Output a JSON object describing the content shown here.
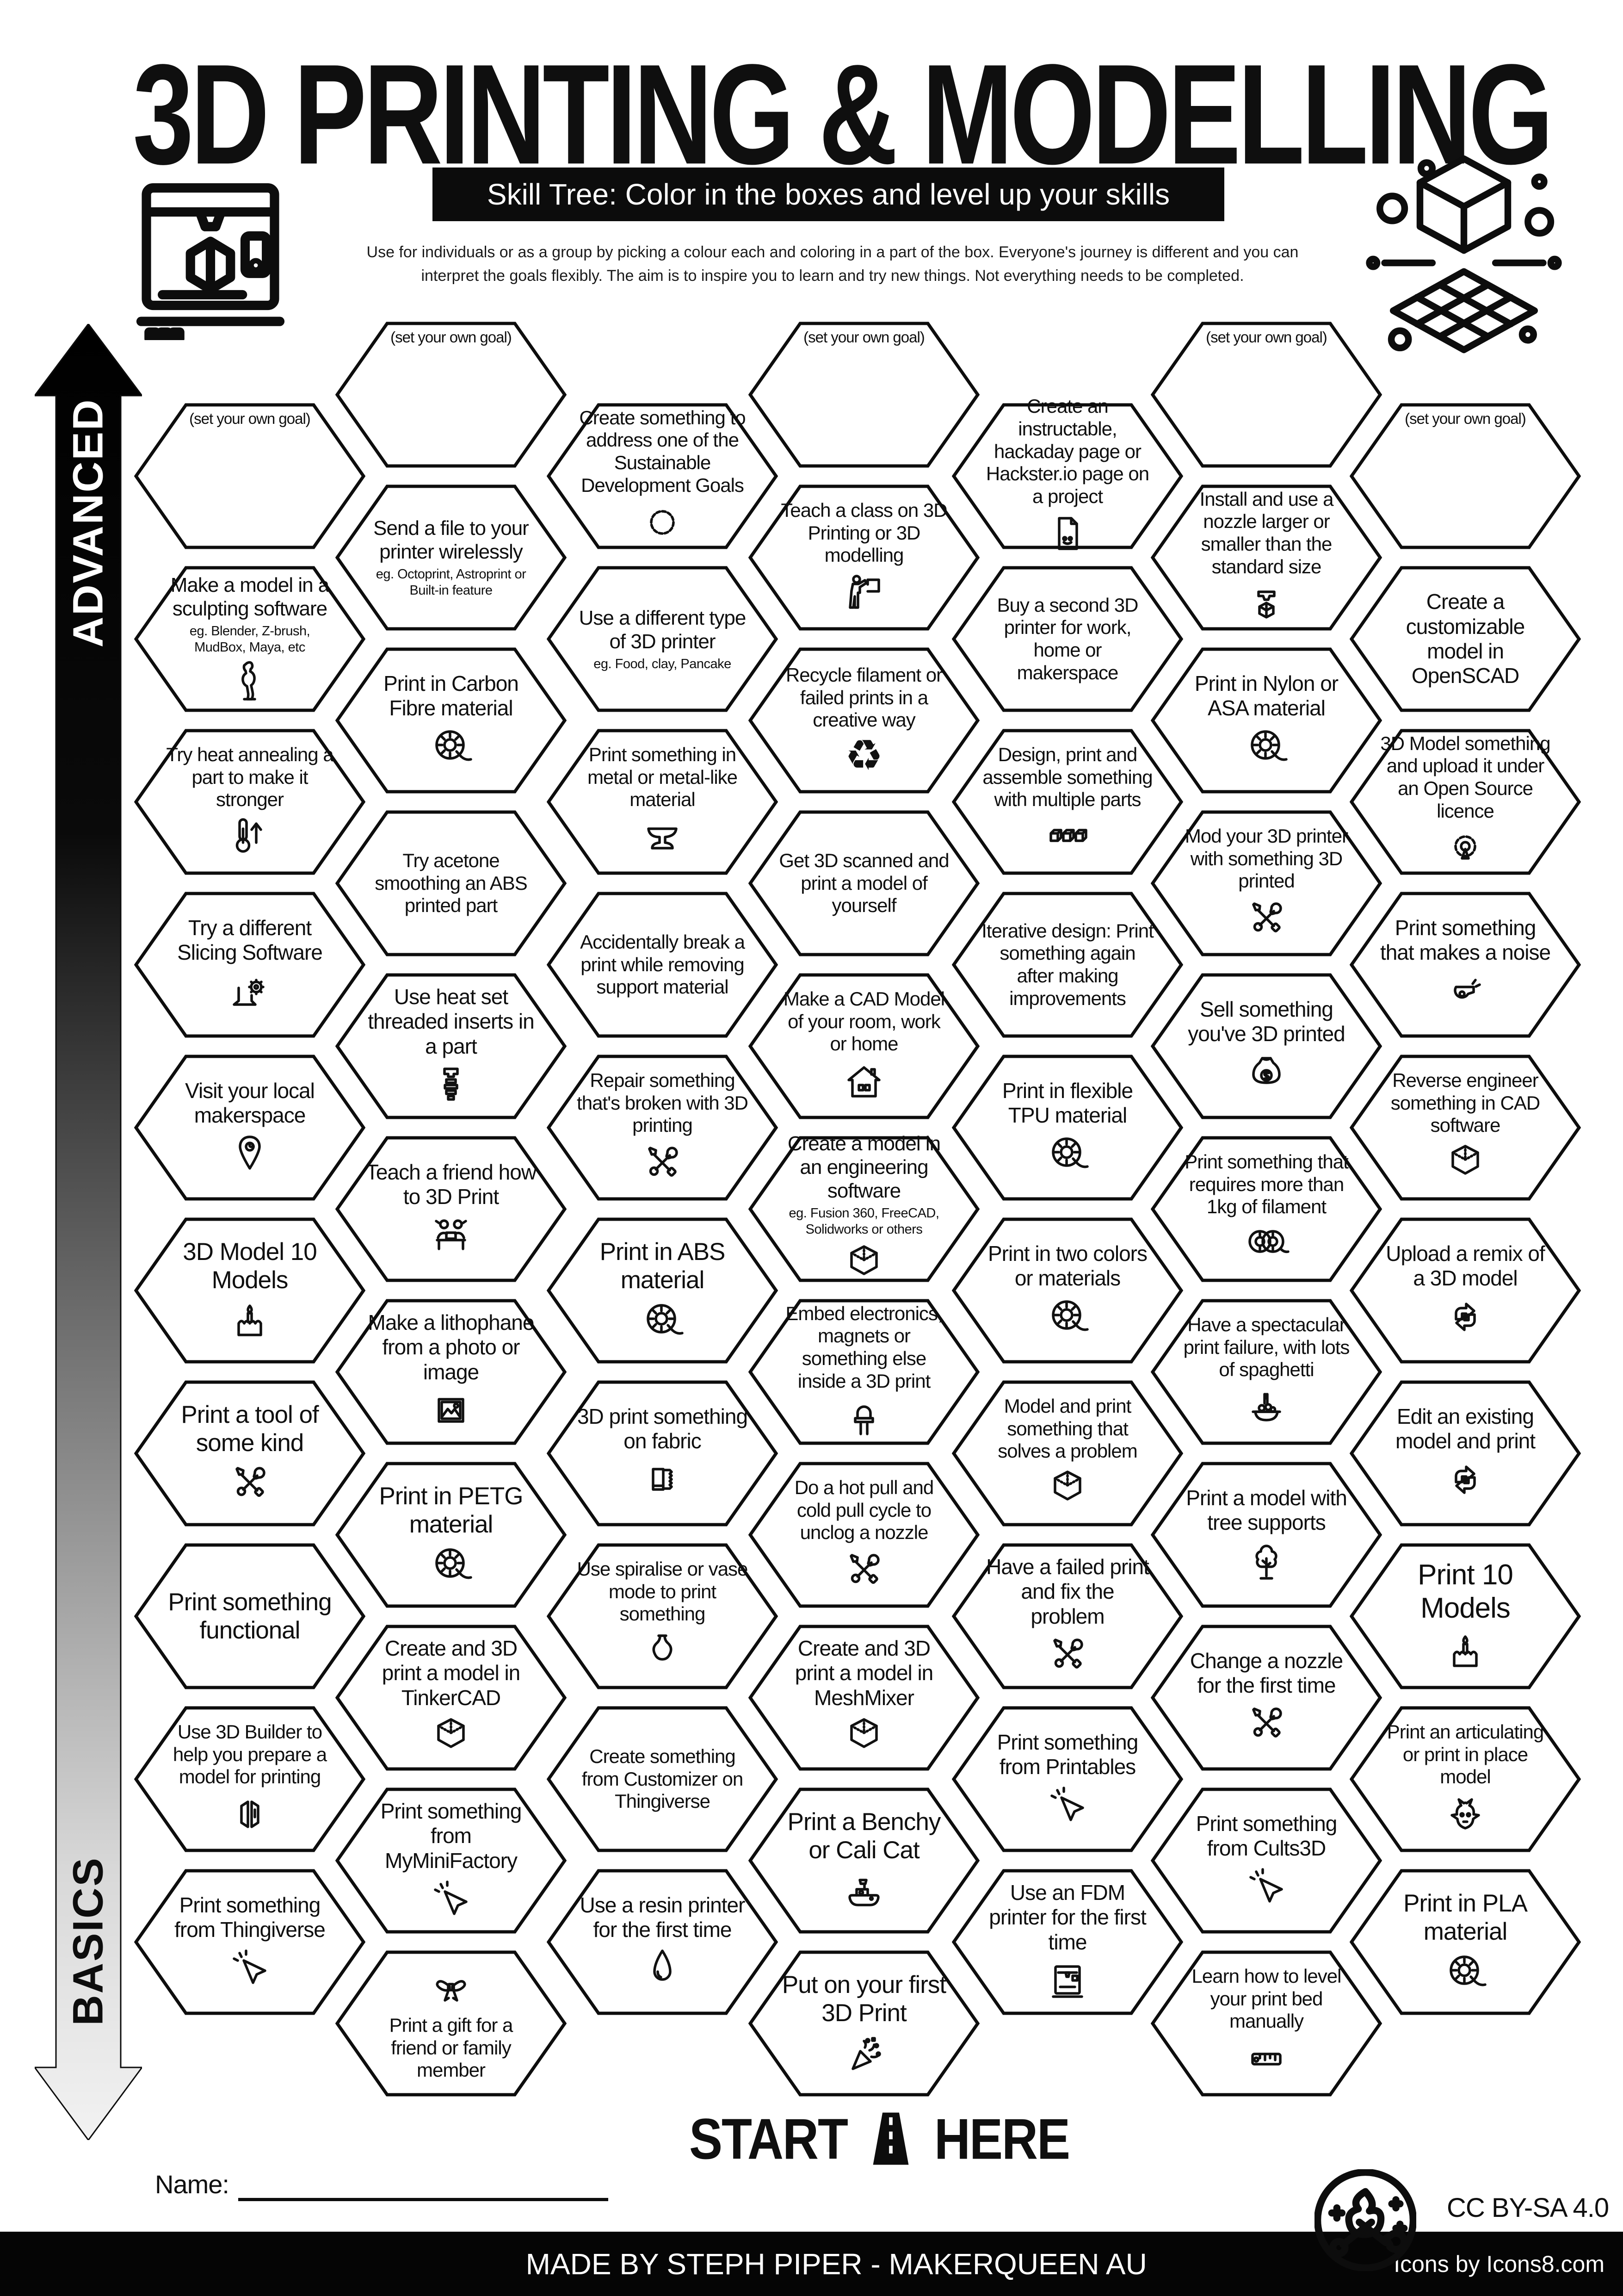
{
  "title": "3D PRINTING & MODELLING",
  "subtitle": "Skill Tree:  Color in the boxes and level up your skills",
  "description": "Use for individuals or as a group by picking a colour each and coloring in a part of the box.  Everyone's journey is different and you can interpret the goals flexibly.  The aim is to inspire you to learn and try new things. Not everything needs to be completed.",
  "axis": {
    "advanced_label": "ADVANCED",
    "basics_label": "BASICS"
  },
  "start_marker": {
    "start": "START",
    "here": "HERE"
  },
  "name_field": {
    "label": "Name:",
    "value": ""
  },
  "footer": {
    "made_by": "MADE BY STEPH PIPER  -  MAKERQUEEN AU",
    "license": "CC BY-SA 4.0",
    "icons_credit": "Icons by Icons8.com"
  },
  "colors": {
    "ink": "#0d0d0d",
    "paper": "#ffffff"
  },
  "columns": [
    {
      "name": "column-1",
      "cells": [
        {
          "goal": true,
          "label": "(set your own goal)"
        },
        {
          "label": "Make a model in a sculpting software",
          "sub": "eg. Blender, Z-brush, MudBox, Maya, etc",
          "icon": "statue"
        },
        {
          "label": "Try heat annealing a part to make it stronger",
          "icon": "thermometer-up"
        },
        {
          "label": "Try a different Slicing Software",
          "icon": "laptop-gear"
        },
        {
          "label": "Visit your local makerspace",
          "icon": "map-pin"
        },
        {
          "label": "3D Model 10 Models",
          "icon": "birthday-cake"
        },
        {
          "label": "Print a tool of some kind",
          "icon": "crossed-tools"
        },
        {
          "label": "Print something functional"
        },
        {
          "label": "Use 3D Builder to help you prepare a model for printing",
          "icon": "3d-builder"
        },
        {
          "label": "Print something from Thingiverse",
          "icon": "click-cursor"
        }
      ]
    },
    {
      "name": "column-2",
      "cells": [
        {
          "goal": true,
          "label": "(set your own goal)"
        },
        {
          "label": "Send a file to your printer wirelessly",
          "sub": "eg. Octoprint, Astroprint or Built-in feature"
        },
        {
          "label": "Print in Carbon Fibre material",
          "icon": "filament-spool"
        },
        {
          "label": "Try acetone smoothing an ABS printed part"
        },
        {
          "label": "Use heat set threaded inserts in a part",
          "icon": "threaded-insert"
        },
        {
          "label": "Teach a friend how to 3D Print",
          "icon": "friends-laptop"
        },
        {
          "label": "Make a lithophane from a photo or image",
          "icon": "photo-frame"
        },
        {
          "label": "Print in PETG material",
          "icon": "filament-spool"
        },
        {
          "label": "Create and 3D print a model in TinkerCAD",
          "icon": "iso-cube"
        },
        {
          "label": "Print something from MyMiniFactory",
          "icon": "click-cursor"
        },
        {
          "label": "Print a gift for a friend or family member",
          "icon": "gift-bow",
          "icon_first": true
        }
      ]
    },
    {
      "name": "column-3",
      "cells": [
        {
          "label": "Create something to address one of the Sustainable Development Goals",
          "icon": "sdg-wheel"
        },
        {
          "label": "Use a different type of 3D printer",
          "sub": "eg. Food, clay, Pancake"
        },
        {
          "label": "Print something in metal or metal-like material",
          "icon": "anvil"
        },
        {
          "label": "Accidentally break a print while removing support material"
        },
        {
          "label": "Repair something that's broken with 3D printing",
          "icon": "crossed-tools"
        },
        {
          "label": "Print in ABS material",
          "icon": "filament-spool"
        },
        {
          "label": "3D print something on fabric",
          "icon": "fabric"
        },
        {
          "label": "Use spiralise or vase mode to print something",
          "icon": "vase"
        },
        {
          "label": "Create something from Customizer on Thingiverse"
        },
        {
          "label": "Use a resin printer for the first time",
          "icon": "resin-droplet"
        }
      ]
    },
    {
      "name": "column-4",
      "cells": [
        {
          "goal": true,
          "label": "(set your own goal)"
        },
        {
          "label": "Teach a class on 3D Printing or 3D modelling",
          "icon": "presenter"
        },
        {
          "label": "Recycle filament or failed prints in a creative way",
          "icon": "recycle"
        },
        {
          "label": "Get 3D scanned and print a model of yourself"
        },
        {
          "label": "Make a CAD Model of your room, work or home",
          "icon": "house"
        },
        {
          "label": "Create a model in an engineering software",
          "sub": "eg. Fusion 360, FreeCAD, Solidworks or others",
          "icon": "iso-cube"
        },
        {
          "label": "Embed electronics, magnets or something else inside a 3D print",
          "icon": "led"
        },
        {
          "label": "Do a hot pull and cold pull cycle to unclog a nozzle",
          "icon": "crossed-tools"
        },
        {
          "label": "Create and 3D print a model in MeshMixer",
          "icon": "iso-cube"
        },
        {
          "label": "Print a Benchy or Cali Cat",
          "icon": "benchy"
        },
        {
          "label": "Put on your first 3D Print",
          "icon": "party-popper"
        }
      ]
    },
    {
      "name": "column-5",
      "cells": [
        {
          "label": "Create an instructable, hackaday page or Hackster.io page on a project",
          "icon": "project-doc"
        },
        {
          "label": "Buy a second 3D printer for work, home or makerspace"
        },
        {
          "label": "Design, print and assemble something with multiple parts",
          "icon": "three-cubes"
        },
        {
          "label": "Iterative design: Print something again after making improvements"
        },
        {
          "label": "Print in flexible TPU material",
          "icon": "filament-spool"
        },
        {
          "label": "Print in two colors or materials",
          "icon": "filament-spool"
        },
        {
          "label": "Model and print something that solves a problem",
          "icon": "iso-cube"
        },
        {
          "label": "Have a failed print and fix the problem",
          "icon": "crossed-tools"
        },
        {
          "label": "Print something from Printables",
          "icon": "click-cursor"
        },
        {
          "label": "Use an FDM printer for the first time",
          "icon": "fdm-printer"
        }
      ]
    },
    {
      "name": "column-6",
      "cells": [
        {
          "goal": true,
          "label": "(set your own goal)"
        },
        {
          "label": "Install and use a nozzle larger or smaller than the standard size",
          "icon": "nozzle"
        },
        {
          "label": "Print in Nylon or ASA material",
          "icon": "filament-spool"
        },
        {
          "label": "Mod your 3D printer with something 3D printed",
          "icon": "crossed-tools"
        },
        {
          "label": "Sell something you've 3D printed",
          "icon": "money-bag"
        },
        {
          "label": "Print something that requires more than 1kg of filament",
          "icon": "two-spools"
        },
        {
          "label": "Have a spectacular print failure, with lots of spaghetti",
          "icon": "spaghetti-bowl"
        },
        {
          "label": "Print a model with tree supports",
          "icon": "tree"
        },
        {
          "label": "Change a nozzle for the first time",
          "icon": "crossed-tools"
        },
        {
          "label": "Print something from Cults3D",
          "icon": "click-cursor"
        },
        {
          "label": "Learn how to level your print bed manually",
          "icon": "level-ruler"
        }
      ]
    },
    {
      "name": "column-7",
      "cells": [
        {
          "goal": true,
          "label": "(set your own goal)"
        },
        {
          "label": "Create a customizable model in OpenSCAD"
        },
        {
          "label": "3D Model something and upload it under an Open Source licence",
          "icon": "open-source-gear"
        },
        {
          "label": "Print something that makes a noise",
          "icon": "whistle"
        },
        {
          "label": "Reverse engineer something in CAD software",
          "icon": "iso-cube"
        },
        {
          "label": "Upload a remix of a 3D model",
          "icon": "remix-arrows"
        },
        {
          "label": "Edit an existing model and print",
          "icon": "remix-arrows"
        },
        {
          "label": "Print 10 Models",
          "icon": "birthday-cake"
        },
        {
          "label": "Print an articulating or print in place model",
          "icon": "dragon"
        },
        {
          "label": "Print in PLA material",
          "icon": "filament-spool"
        }
      ]
    }
  ]
}
